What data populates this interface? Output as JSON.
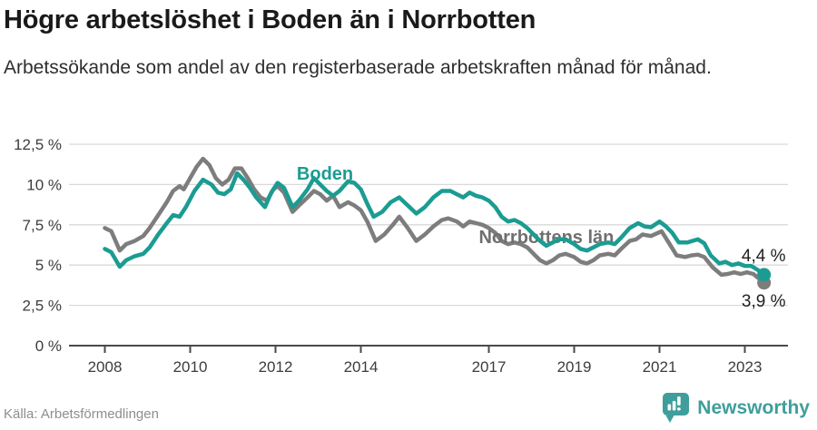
{
  "header": {
    "title": "Högre arbetslöshet i Boden än i Norrbotten",
    "subtitle": "Arbetssökande som andel av den registerbaserade arbetskraften månad för månad."
  },
  "footer": {
    "source": "Källa: Arbetsförmedlingen",
    "brand": "Newsworthy"
  },
  "colors": {
    "accent_teal": "#1b9c92",
    "series_gray": "#7d7d7d",
    "grid": "#d9d9d9",
    "axis": "#4a4a4a",
    "brand_teal": "#3f9e9b",
    "label_gray": "#6f6f6f"
  },
  "chart_data": {
    "type": "line",
    "title": "Högre arbetslöshet i Boden än i Norrbotten",
    "subtitle": "Arbetssökande som andel av den registerbaserade arbetskraften månad för månad.",
    "xlabel": "",
    "ylabel": "",
    "xlim": [
      2007.2,
      2024.0
    ],
    "ylim": [
      0,
      12.5
    ],
    "grid": true,
    "legend": "inline-labels",
    "y_ticks": [
      {
        "value": 0,
        "label": "0 %"
      },
      {
        "value": 2.5,
        "label": "2,5 %"
      },
      {
        "value": 5,
        "label": "5 %"
      },
      {
        "value": 7.5,
        "label": "7,5 %"
      },
      {
        "value": 10,
        "label": "10 %"
      },
      {
        "value": 12.5,
        "label": "12,5 %"
      }
    ],
    "x_ticks": [
      {
        "value": 2008,
        "label": "2008"
      },
      {
        "value": 2010,
        "label": "2010"
      },
      {
        "value": 2012,
        "label": "2012"
      },
      {
        "value": 2014,
        "label": "2014"
      },
      {
        "value": 2017,
        "label": "2017"
      },
      {
        "value": 2019,
        "label": "2019"
      },
      {
        "value": 2021,
        "label": "2021"
      },
      {
        "value": 2023,
        "label": "2023"
      }
    ],
    "series": [
      {
        "name": "Norrbottens län",
        "color": "#7d7d7d",
        "label_color": "#6f6f6f",
        "label_at": {
          "x": 2018.35,
          "y": 6.76
        },
        "end_label": {
          "text": "3,9 %",
          "x": 2023.44,
          "y": 2.82
        },
        "points": [
          [
            2008.0,
            7.3
          ],
          [
            2008.15,
            7.1
          ],
          [
            2008.35,
            5.9
          ],
          [
            2008.5,
            6.3
          ],
          [
            2008.7,
            6.5
          ],
          [
            2008.9,
            6.8
          ],
          [
            2009.05,
            7.3
          ],
          [
            2009.25,
            8.1
          ],
          [
            2009.45,
            8.9
          ],
          [
            2009.6,
            9.6
          ],
          [
            2009.75,
            9.9
          ],
          [
            2009.85,
            9.7
          ],
          [
            2010.0,
            10.4
          ],
          [
            2010.15,
            11.1
          ],
          [
            2010.3,
            11.6
          ],
          [
            2010.45,
            11.2
          ],
          [
            2010.6,
            10.4
          ],
          [
            2010.75,
            10.0
          ],
          [
            2010.9,
            10.3
          ],
          [
            2011.05,
            11.0
          ],
          [
            2011.2,
            11.0
          ],
          [
            2011.35,
            10.4
          ],
          [
            2011.5,
            9.7
          ],
          [
            2011.65,
            9.2
          ],
          [
            2011.8,
            9.0
          ],
          [
            2011.95,
            9.7
          ],
          [
            2012.05,
            9.9
          ],
          [
            2012.2,
            9.5
          ],
          [
            2012.4,
            8.3
          ],
          [
            2012.55,
            8.7
          ],
          [
            2012.75,
            9.2
          ],
          [
            2012.9,
            9.6
          ],
          [
            2013.05,
            9.4
          ],
          [
            2013.2,
            9.0
          ],
          [
            2013.35,
            9.3
          ],
          [
            2013.5,
            8.6
          ],
          [
            2013.7,
            8.9
          ],
          [
            2013.85,
            8.7
          ],
          [
            2014.0,
            8.4
          ],
          [
            2014.15,
            7.7
          ],
          [
            2014.35,
            6.5
          ],
          [
            2014.55,
            6.9
          ],
          [
            2014.75,
            7.5
          ],
          [
            2014.9,
            8.0
          ],
          [
            2015.1,
            7.3
          ],
          [
            2015.3,
            6.5
          ],
          [
            2015.5,
            6.9
          ],
          [
            2015.7,
            7.4
          ],
          [
            2015.9,
            7.8
          ],
          [
            2016.05,
            7.9
          ],
          [
            2016.25,
            7.7
          ],
          [
            2016.4,
            7.4
          ],
          [
            2016.55,
            7.7
          ],
          [
            2016.7,
            7.6
          ],
          [
            2016.85,
            7.5
          ],
          [
            2017.0,
            7.3
          ],
          [
            2017.15,
            7.0
          ],
          [
            2017.3,
            6.5
          ],
          [
            2017.45,
            6.3
          ],
          [
            2017.6,
            6.4
          ],
          [
            2017.75,
            6.3
          ],
          [
            2017.9,
            6.1
          ],
          [
            2018.05,
            5.7
          ],
          [
            2018.2,
            5.3
          ],
          [
            2018.35,
            5.1
          ],
          [
            2018.5,
            5.3
          ],
          [
            2018.65,
            5.6
          ],
          [
            2018.8,
            5.7
          ],
          [
            2019.0,
            5.5
          ],
          [
            2019.15,
            5.2
          ],
          [
            2019.3,
            5.1
          ],
          [
            2019.45,
            5.3
          ],
          [
            2019.6,
            5.6
          ],
          [
            2019.8,
            5.7
          ],
          [
            2019.95,
            5.6
          ],
          [
            2020.1,
            6.0
          ],
          [
            2020.3,
            6.5
          ],
          [
            2020.45,
            6.6
          ],
          [
            2020.6,
            6.9
          ],
          [
            2020.8,
            6.8
          ],
          [
            2021.05,
            7.1
          ],
          [
            2021.25,
            6.25
          ],
          [
            2021.4,
            5.6
          ],
          [
            2021.6,
            5.5
          ],
          [
            2021.75,
            5.6
          ],
          [
            2021.9,
            5.65
          ],
          [
            2022.05,
            5.5
          ],
          [
            2022.25,
            4.85
          ],
          [
            2022.45,
            4.4
          ],
          [
            2022.6,
            4.45
          ],
          [
            2022.75,
            4.55
          ],
          [
            2022.9,
            4.45
          ],
          [
            2023.05,
            4.55
          ],
          [
            2023.2,
            4.45
          ],
          [
            2023.45,
            3.9
          ]
        ]
      },
      {
        "name": "Boden",
        "color": "#1b9c92",
        "label_color": "#1b9c92",
        "label_at": {
          "x": 2013.16,
          "y": 10.7
        },
        "end_label": {
          "text": "4,4 %",
          "x": 2023.44,
          "y": 5.63
        },
        "points": [
          [
            2008.0,
            6.0
          ],
          [
            2008.15,
            5.8
          ],
          [
            2008.35,
            4.9
          ],
          [
            2008.5,
            5.3
          ],
          [
            2008.7,
            5.55
          ],
          [
            2008.9,
            5.7
          ],
          [
            2009.05,
            6.1
          ],
          [
            2009.25,
            6.9
          ],
          [
            2009.45,
            7.6
          ],
          [
            2009.6,
            8.1
          ],
          [
            2009.75,
            8.0
          ],
          [
            2009.9,
            8.6
          ],
          [
            2010.1,
            9.6
          ],
          [
            2010.3,
            10.3
          ],
          [
            2010.5,
            10.0
          ],
          [
            2010.65,
            9.5
          ],
          [
            2010.8,
            9.4
          ],
          [
            2010.95,
            9.7
          ],
          [
            2011.1,
            10.7
          ],
          [
            2011.25,
            10.3
          ],
          [
            2011.4,
            9.8
          ],
          [
            2011.55,
            9.2
          ],
          [
            2011.75,
            8.6
          ],
          [
            2011.9,
            9.5
          ],
          [
            2012.05,
            10.1
          ],
          [
            2012.2,
            9.8
          ],
          [
            2012.4,
            8.6
          ],
          [
            2012.55,
            9.0
          ],
          [
            2012.75,
            9.7
          ],
          [
            2012.9,
            10.4
          ],
          [
            2013.05,
            10.0
          ],
          [
            2013.2,
            9.6
          ],
          [
            2013.35,
            9.3
          ],
          [
            2013.5,
            9.6
          ],
          [
            2013.7,
            10.2
          ],
          [
            2013.85,
            10.1
          ],
          [
            2014.0,
            9.7
          ],
          [
            2014.15,
            8.8
          ],
          [
            2014.3,
            8.0
          ],
          [
            2014.5,
            8.3
          ],
          [
            2014.7,
            8.9
          ],
          [
            2014.9,
            9.2
          ],
          [
            2015.1,
            8.7
          ],
          [
            2015.3,
            8.2
          ],
          [
            2015.5,
            8.6
          ],
          [
            2015.7,
            9.2
          ],
          [
            2015.9,
            9.6
          ],
          [
            2016.1,
            9.6
          ],
          [
            2016.25,
            9.4
          ],
          [
            2016.4,
            9.2
          ],
          [
            2016.55,
            9.5
          ],
          [
            2016.7,
            9.3
          ],
          [
            2016.85,
            9.2
          ],
          [
            2017.0,
            9.0
          ],
          [
            2017.15,
            8.6
          ],
          [
            2017.3,
            8.0
          ],
          [
            2017.45,
            7.7
          ],
          [
            2017.6,
            7.8
          ],
          [
            2017.75,
            7.6
          ],
          [
            2017.9,
            7.3
          ],
          [
            2018.05,
            6.9
          ],
          [
            2018.2,
            6.5
          ],
          [
            2018.35,
            6.2
          ],
          [
            2018.5,
            6.4
          ],
          [
            2018.65,
            6.6
          ],
          [
            2018.8,
            6.6
          ],
          [
            2019.0,
            6.3
          ],
          [
            2019.15,
            6.0
          ],
          [
            2019.3,
            5.9
          ],
          [
            2019.45,
            6.1
          ],
          [
            2019.6,
            6.3
          ],
          [
            2019.8,
            6.4
          ],
          [
            2019.95,
            6.3
          ],
          [
            2020.1,
            6.7
          ],
          [
            2020.3,
            7.3
          ],
          [
            2020.5,
            7.6
          ],
          [
            2020.65,
            7.4
          ],
          [
            2020.8,
            7.35
          ],
          [
            2021.0,
            7.7
          ],
          [
            2021.15,
            7.4
          ],
          [
            2021.3,
            7.0
          ],
          [
            2021.45,
            6.4
          ],
          [
            2021.65,
            6.4
          ],
          [
            2021.9,
            6.6
          ],
          [
            2022.05,
            6.35
          ],
          [
            2022.2,
            5.6
          ],
          [
            2022.4,
            5.1
          ],
          [
            2022.55,
            5.2
          ],
          [
            2022.7,
            5.0
          ],
          [
            2022.85,
            5.1
          ],
          [
            2023.0,
            4.95
          ],
          [
            2023.15,
            4.95
          ],
          [
            2023.3,
            4.7
          ],
          [
            2023.45,
            4.4
          ]
        ]
      }
    ]
  }
}
